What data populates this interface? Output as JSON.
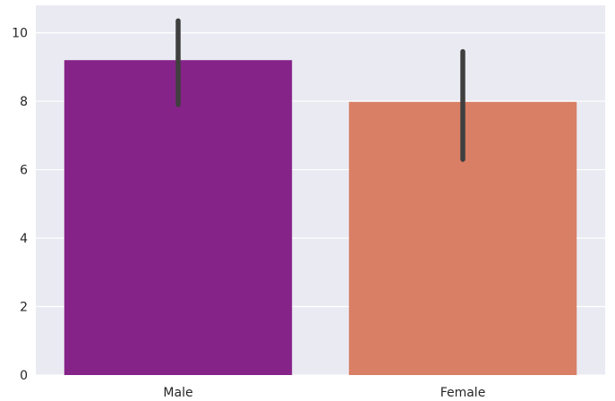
{
  "chart_data": {
    "type": "bar",
    "title": "",
    "xlabel": "",
    "ylabel": "",
    "categories": [
      "Male",
      "Female"
    ],
    "values": [
      9.2,
      7.98
    ],
    "error_low": [
      7.9,
      6.3
    ],
    "error_high": [
      10.35,
      9.45
    ],
    "bar_colors": [
      "#862389",
      "#d97f65"
    ],
    "error_color": "#3f3f3f",
    "background_color": "#eaeaf2",
    "grid_color": "#ffffff",
    "grid": true,
    "ylim": [
      0,
      10.8
    ],
    "yticks": [
      "0",
      "2",
      "4",
      "6",
      "8",
      "10"
    ]
  }
}
